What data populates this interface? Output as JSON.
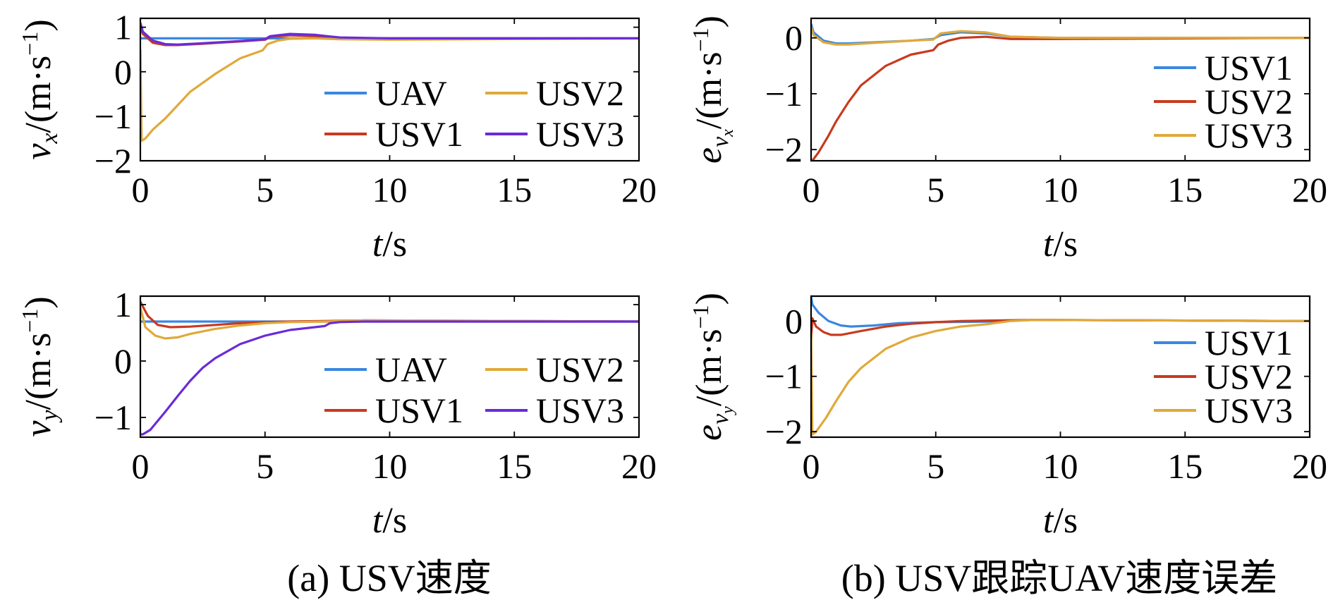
{
  "panel_captions": {
    "a": "(a) USV速度",
    "b": "(b) USV跟踪UAV速度误差"
  },
  "colors": {
    "UAV": "#3a87e0",
    "USV1": "#c83a1e",
    "USV2": "#e0a93a",
    "USV3": "#6a2bd8",
    "err_USV1": "#3a87e0",
    "err_USV2": "#c83a1e",
    "err_USV3": "#e0a93a"
  },
  "chart_data": [
    {
      "id": "vx",
      "type": "line",
      "ylabel": "v_x/(m·s^-1)",
      "xlabel": "t/s",
      "xlim": [
        0,
        20
      ],
      "ylim": [
        -2,
        1.2
      ],
      "xticks": [
        "0",
        "5",
        "10",
        "15",
        "20"
      ],
      "yticks": [
        "1",
        "0",
        "−1",
        "−2"
      ],
      "ytick_values": [
        1,
        0,
        -1,
        -2
      ],
      "legend": "bottom-right, 2 columns",
      "series": [
        {
          "name": "UAV",
          "color_key": "UAV",
          "x": [
            0,
            5,
            6,
            7.5,
            20
          ],
          "y": [
            0.75,
            0.75,
            0.75,
            0.75,
            0.75
          ]
        },
        {
          "name": "USV1",
          "color_key": "USV1",
          "x": [
            0,
            0.1,
            0.5,
            1,
            1.5,
            2.5,
            4,
            5,
            5.2,
            6,
            7,
            7.5,
            8,
            10,
            20
          ],
          "y": [
            1.0,
            0.85,
            0.65,
            0.6,
            0.6,
            0.63,
            0.68,
            0.72,
            0.78,
            0.82,
            0.8,
            0.78,
            0.76,
            0.75,
            0.75
          ]
        },
        {
          "name": "USV2",
          "color_key": "USV2",
          "x": [
            0,
            0.05,
            0.2,
            0.5,
            1,
            1.5,
            2,
            3,
            4,
            4.9,
            5.1,
            5.5,
            6,
            7,
            8,
            10,
            20
          ],
          "y": [
            0.5,
            -1.55,
            -1.5,
            -1.3,
            -1.05,
            -0.75,
            -0.45,
            -0.05,
            0.3,
            0.48,
            0.62,
            0.7,
            0.74,
            0.75,
            0.73,
            0.72,
            0.75
          ]
        },
        {
          "name": "USV3",
          "color_key": "USV3",
          "x": [
            0,
            0.1,
            0.5,
            1,
            1.5,
            2.5,
            4,
            5,
            5.2,
            6,
            7,
            7.5,
            8,
            10,
            20
          ],
          "y": [
            1.1,
            0.9,
            0.7,
            0.62,
            0.61,
            0.64,
            0.69,
            0.73,
            0.8,
            0.85,
            0.83,
            0.8,
            0.77,
            0.75,
            0.75
          ]
        }
      ],
      "legend_entries": [
        "UAV",
        "USV1",
        "USV2",
        "USV3"
      ]
    },
    {
      "id": "evx",
      "type": "line",
      "ylabel": "e_vx/(m·s^-1)",
      "xlabel": "t/s",
      "xlim": [
        0,
        20
      ],
      "ylim": [
        -2.2,
        0.35
      ],
      "xticks": [
        "0",
        "5",
        "10",
        "15",
        "20"
      ],
      "yticks": [
        "0",
        "−1",
        "−2"
      ],
      "ytick_values": [
        0,
        -1,
        -2
      ],
      "legend": "right, 1 column",
      "series": [
        {
          "name": "USV1",
          "color_key": "err_USV1",
          "x": [
            0,
            0.1,
            0.5,
            1,
            1.5,
            2.5,
            4,
            4.9,
            5.2,
            6,
            7,
            7.5,
            8,
            10,
            20
          ],
          "y": [
            0.25,
            0.1,
            -0.05,
            -0.1,
            -0.1,
            -0.08,
            -0.05,
            -0.02,
            0.05,
            0.1,
            0.08,
            0.05,
            0.02,
            0.0,
            0.0
          ]
        },
        {
          "name": "USV2",
          "color_key": "err_USV2",
          "x": [
            0,
            0.05,
            0.3,
            0.7,
            1,
            1.5,
            2,
            3,
            4,
            4.9,
            5.1,
            5.5,
            6,
            7,
            7.5,
            8,
            10,
            20
          ],
          "y": [
            -2.2,
            -2.2,
            -2.05,
            -1.75,
            -1.5,
            -1.15,
            -0.85,
            -0.5,
            -0.3,
            -0.22,
            -0.12,
            -0.05,
            0.0,
            0.02,
            0.0,
            -0.02,
            -0.02,
            0.0
          ]
        },
        {
          "name": "USV3",
          "color_key": "err_USV3",
          "x": [
            0,
            0.1,
            0.5,
            1,
            1.5,
            2.5,
            4,
            4.9,
            5.2,
            6,
            7,
            7.5,
            8,
            10,
            20
          ],
          "y": [
            0.2,
            0.05,
            -0.08,
            -0.12,
            -0.12,
            -0.09,
            -0.05,
            -0.03,
            0.08,
            0.12,
            0.1,
            0.06,
            0.02,
            0.0,
            0.0
          ]
        }
      ],
      "legend_entries": [
        "USV1",
        "USV2",
        "USV3"
      ]
    },
    {
      "id": "vy",
      "type": "line",
      "ylabel": "v_y/(m·s^-1)",
      "xlabel": "t/s",
      "xlim": [
        0,
        20
      ],
      "ylim": [
        -1.35,
        1.15
      ],
      "xticks": [
        "0",
        "5",
        "10",
        "15",
        "20"
      ],
      "yticks": [
        "1",
        "0",
        "−1"
      ],
      "ytick_values": [
        1,
        0,
        -1
      ],
      "legend": "bottom-right, 2 columns",
      "series": [
        {
          "name": "UAV",
          "color_key": "UAV",
          "x": [
            0,
            7.5,
            20
          ],
          "y": [
            0.7,
            0.7,
            0.7
          ]
        },
        {
          "name": "USV1",
          "color_key": "USV1",
          "x": [
            0,
            0.3,
            0.7,
            1.2,
            2,
            3,
            4,
            5,
            6,
            7.5,
            9,
            20
          ],
          "y": [
            1.05,
            0.8,
            0.64,
            0.6,
            0.61,
            0.64,
            0.67,
            0.69,
            0.7,
            0.71,
            0.72,
            0.7
          ]
        },
        {
          "name": "USV2",
          "color_key": "USV2",
          "x": [
            0,
            0.2,
            0.6,
            1,
            1.5,
            2,
            3,
            4,
            5,
            6,
            7.5,
            9,
            20
          ],
          "y": [
            0.95,
            0.6,
            0.45,
            0.4,
            0.42,
            0.48,
            0.57,
            0.63,
            0.67,
            0.69,
            0.7,
            0.72,
            0.7
          ]
        },
        {
          "name": "USV3",
          "color_key": "USV3",
          "x": [
            0,
            0.1,
            0.4,
            1,
            1.5,
            2,
            2.5,
            3,
            4,
            5,
            6,
            7,
            7.4,
            7.6,
            8,
            9,
            20
          ],
          "y": [
            -1.3,
            -1.3,
            -1.22,
            -0.9,
            -0.62,
            -0.35,
            -0.12,
            0.05,
            0.3,
            0.45,
            0.55,
            0.6,
            0.62,
            0.67,
            0.69,
            0.7,
            0.7
          ]
        }
      ],
      "legend_entries": [
        "UAV",
        "USV1",
        "USV2",
        "USV3"
      ]
    },
    {
      "id": "evy",
      "type": "line",
      "ylabel": "e_vy/(m·s^-1)",
      "xlabel": "t/s",
      "xlim": [
        0,
        20
      ],
      "ylim": [
        -2.1,
        0.45
      ],
      "xticks": [
        "0",
        "5",
        "10",
        "15",
        "20"
      ],
      "yticks": [
        "0",
        "−1",
        "−2"
      ],
      "ytick_values": [
        0,
        -1,
        -2
      ],
      "legend": "right, 1 column",
      "series": [
        {
          "name": "USV1",
          "color_key": "err_USV1",
          "x": [
            0,
            0.05,
            0.3,
            0.7,
            1.2,
            1.6,
            2.5,
            3.5,
            5,
            7,
            9,
            20
          ],
          "y": [
            0.45,
            0.3,
            0.15,
            0.0,
            -0.08,
            -0.1,
            -0.08,
            -0.04,
            -0.02,
            -0.01,
            0.02,
            0.0
          ]
        },
        {
          "name": "USV2",
          "color_key": "err_USV2",
          "x": [
            0,
            0.05,
            0.2,
            0.5,
            0.8,
            1.2,
            2,
            3,
            4,
            5,
            6,
            7.5,
            9,
            20
          ],
          "y": [
            -0.35,
            0.05,
            -0.1,
            -0.2,
            -0.25,
            -0.25,
            -0.18,
            -0.1,
            -0.05,
            -0.02,
            0.0,
            0.01,
            0.02,
            0.0
          ]
        },
        {
          "name": "USV3",
          "color_key": "err_USV3",
          "x": [
            0,
            0.05,
            0.2,
            0.6,
            1,
            1.5,
            2,
            3,
            4,
            5,
            6,
            7,
            7.5,
            8,
            9,
            20
          ],
          "y": [
            -0.2,
            -2.05,
            -2.0,
            -1.75,
            -1.45,
            -1.1,
            -0.85,
            -0.5,
            -0.3,
            -0.18,
            -0.1,
            -0.06,
            -0.03,
            0.0,
            0.02,
            0.0
          ]
        }
      ],
      "legend_entries": [
        "USV1",
        "USV2",
        "USV3"
      ]
    }
  ]
}
